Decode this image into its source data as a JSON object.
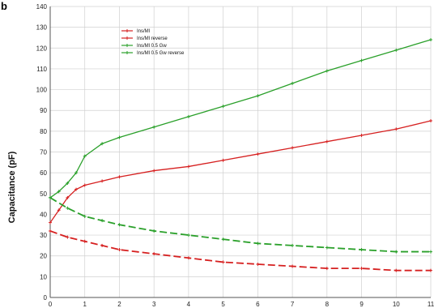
{
  "chart_data": {
    "type": "line",
    "panel_label": "b",
    "ylabel": "Capacitance (pF)",
    "xlabel": "",
    "xlim": [
      0,
      11
    ],
    "ylim": [
      0,
      140
    ],
    "yticks": [
      0,
      10,
      20,
      30,
      40,
      50,
      60,
      70,
      80,
      90,
      100,
      110,
      120,
      130,
      140
    ],
    "xticks": [
      0,
      1,
      2,
      3,
      4,
      5,
      6,
      7,
      8,
      9,
      10,
      11
    ],
    "grid": true,
    "legend_position": "top-left",
    "legend": [
      "Ins/Ml",
      "Ins/Ml reverse",
      "Ins/Ml 0.5 Gw",
      "Ins/Ml 0.5 Gw reverse"
    ],
    "series": [
      {
        "name": "Ins/Ml",
        "color": "#d62020",
        "x": [
          0,
          0.25,
          0.5,
          0.75,
          1,
          1.5,
          2,
          3,
          4,
          5,
          6,
          7,
          8,
          9,
          10,
          11
        ],
        "values": [
          36,
          42,
          48,
          52,
          54,
          56,
          58,
          61,
          63,
          66,
          69,
          72,
          75,
          78,
          81,
          85
        ]
      },
      {
        "name": "Ins/Ml reverse",
        "color": "#d62020",
        "x": [
          0,
          0.5,
          1,
          1.5,
          2,
          3,
          4,
          5,
          6,
          7,
          8,
          9,
          10,
          11
        ],
        "values": [
          32,
          29,
          27,
          25,
          23,
          21,
          19,
          17,
          16,
          15,
          14,
          14,
          13,
          13
        ]
      },
      {
        "name": "Ins/Ml 0.5 Gw",
        "color": "#2aa02a",
        "x": [
          0,
          0.25,
          0.5,
          0.75,
          1,
          1.5,
          2,
          3,
          4,
          5,
          6,
          7,
          8,
          9,
          10,
          11
        ],
        "values": [
          48,
          51,
          55,
          60,
          68,
          74,
          77,
          82,
          87,
          92,
          97,
          103,
          109,
          114,
          119,
          124
        ]
      },
      {
        "name": "Ins/Ml 0.5 Gw reverse",
        "color": "#2aa02a",
        "x": [
          0,
          0.5,
          1,
          1.5,
          2,
          3,
          4,
          5,
          6,
          7,
          8,
          9,
          10,
          11
        ],
        "values": [
          48,
          43,
          39,
          37,
          35,
          32,
          30,
          28,
          26,
          25,
          24,
          23,
          22,
          22
        ]
      }
    ]
  }
}
